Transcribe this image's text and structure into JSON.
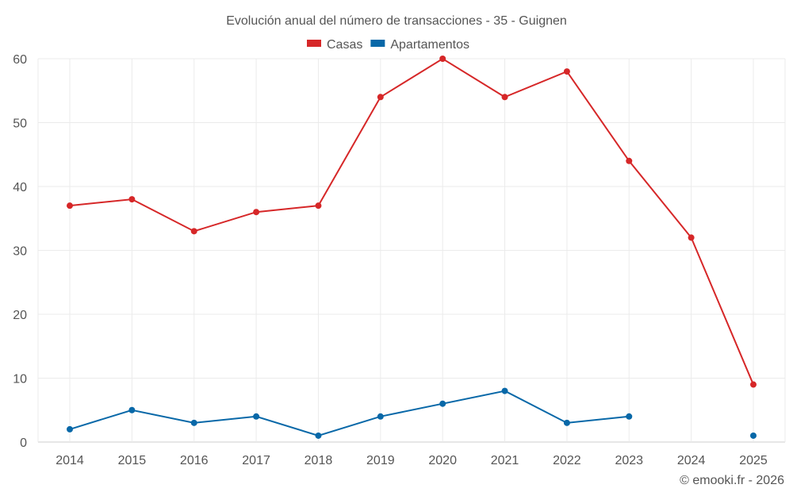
{
  "chart_data": {
    "type": "line",
    "title": "Evolución anual del número de transacciones - 35 - Guignen",
    "xlabel": "",
    "ylabel": "",
    "categories": [
      "2014",
      "2015",
      "2016",
      "2017",
      "2018",
      "2019",
      "2020",
      "2021",
      "2022",
      "2023",
      "2024",
      "2025"
    ],
    "ylim": [
      0,
      60
    ],
    "yticks": [
      "0",
      "10",
      "20",
      "30",
      "40",
      "50",
      "60"
    ],
    "grid": true,
    "legend_position": "top-center",
    "series": [
      {
        "name": "Casas",
        "color": "#d62728",
        "values": [
          37,
          38,
          33,
          36,
          37,
          54,
          60,
          54,
          58,
          44,
          32,
          9
        ]
      },
      {
        "name": "Apartamentos",
        "color": "#0868a8",
        "values": [
          2,
          5,
          3,
          4,
          1,
          4,
          6,
          8,
          3,
          4,
          null,
          1
        ]
      }
    ],
    "credit": "© emooki.fr - 2026"
  }
}
